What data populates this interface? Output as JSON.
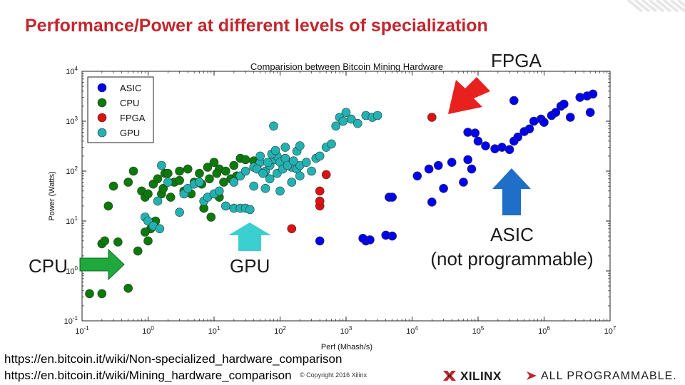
{
  "slide": {
    "title": "Performance/Power at different levels of specialization",
    "stripe_color": "#c0272d"
  },
  "annotations": {
    "fpga": "FPGA",
    "cpu": "CPU",
    "gpu": "GPU",
    "asic_line1": "ASIC",
    "asic_line2": "(not programmable)",
    "arrow_colors": {
      "fpga": "#e8201e",
      "cpu": "#1fa83b",
      "gpu": "#3ccfcf",
      "asic": "#1f6fc8"
    }
  },
  "footer": {
    "link1": "https://en.bitcoin.it/wiki/Non-specialized_hardware_comparison",
    "link2": "https://en.bitcoin.it/wiki/Mining_hardware_comparison",
    "copyright": "© Copyright 2016 Xilinx",
    "logo_brand": "XILINX",
    "logo_tagline": "ALL PROGRAMMABLE."
  },
  "chart_data": {
    "type": "scatter",
    "title": "Comparision between Bitcoin Mining Hardware",
    "xlabel": "Perf (Mhash/s)",
    "ylabel": "Power (Watts)",
    "xscale": "log",
    "yscale": "log",
    "xlim": [
      0.1,
      10000000
    ],
    "ylim": [
      0.1,
      10000
    ],
    "x_ticks": [
      "10^-1",
      "10^0",
      "10^1",
      "10^2",
      "10^3",
      "10^4",
      "10^5",
      "10^6",
      "10^7"
    ],
    "y_ticks": [
      "10^-1",
      "10^0",
      "10^1",
      "10^2",
      "10^3",
      "10^4"
    ],
    "grid": false,
    "legend_position": "top-left",
    "series": [
      {
        "name": "ASIC",
        "color": "#0000ee",
        "points": [
          [
            400,
            4
          ],
          [
            2000,
            4
          ],
          [
            2300,
            4.2
          ],
          [
            1800,
            4.5
          ],
          [
            5000,
            5
          ],
          [
            4000,
            5.2
          ],
          [
            4500,
            30
          ],
          [
            5000,
            30
          ],
          [
            20000,
            24
          ],
          [
            12000,
            80
          ],
          [
            18000,
            110
          ],
          [
            25000,
            130
          ],
          [
            40000,
            150
          ],
          [
            70000,
            170
          ],
          [
            30000,
            45
          ],
          [
            60000,
            60
          ],
          [
            80000,
            110
          ],
          [
            70000,
            600
          ],
          [
            90000,
            580
          ],
          [
            100000,
            400
          ],
          [
            130000,
            320
          ],
          [
            180000,
            280
          ],
          [
            230000,
            300
          ],
          [
            300000,
            270
          ],
          [
            350000,
            400
          ],
          [
            400000,
            480
          ],
          [
            500000,
            620
          ],
          [
            600000,
            700
          ],
          [
            700000,
            1000
          ],
          [
            900000,
            1100
          ],
          [
            1000000,
            950
          ],
          [
            1300000,
            1300
          ],
          [
            1500000,
            1500
          ],
          [
            1800000,
            2000
          ],
          [
            2000000,
            2200
          ],
          [
            350000,
            2600
          ],
          [
            2500000,
            1200
          ],
          [
            3500000,
            3000
          ],
          [
            4500000,
            3200
          ],
          [
            5500000,
            3500
          ],
          [
            5000000,
            1500
          ]
        ]
      },
      {
        "name": "CPU",
        "color": "#0a7a0a",
        "points": [
          [
            0.13,
            0.35
          ],
          [
            0.2,
            0.35
          ],
          [
            0.2,
            3.5
          ],
          [
            0.22,
            4
          ],
          [
            0.35,
            3.8
          ],
          [
            0.25,
            20
          ],
          [
            0.3,
            50
          ],
          [
            0.5,
            60
          ],
          [
            0.6,
            100
          ],
          [
            0.8,
            40
          ],
          [
            0.9,
            30
          ],
          [
            1.0,
            35
          ],
          [
            1.2,
            55
          ],
          [
            1.4,
            70
          ],
          [
            1.8,
            90
          ],
          [
            0.5,
            0.45
          ],
          [
            0.7,
            2.5
          ],
          [
            1.0,
            4
          ],
          [
            1.3,
            10
          ],
          [
            1.1,
            7
          ],
          [
            0.9,
            6
          ],
          [
            1.6,
            35
          ],
          [
            2.0,
            90
          ],
          [
            3.0,
            100
          ],
          [
            4.0,
            110
          ],
          [
            5.0,
            60
          ],
          [
            6.0,
            90
          ],
          [
            8.0,
            120
          ],
          [
            10.0,
            150
          ],
          [
            12.0,
            110
          ],
          [
            15.0,
            100
          ],
          [
            20.0,
            130
          ],
          [
            25.0,
            180
          ],
          [
            30.0,
            170
          ],
          [
            40.0,
            160
          ],
          [
            2.5,
            60
          ],
          [
            3.5,
            40
          ],
          [
            4.5,
            35
          ],
          [
            7.0,
            18
          ],
          [
            9.0,
            12
          ],
          [
            12.0,
            30
          ],
          [
            18.0,
            70
          ],
          [
            3.0,
            65
          ],
          [
            2.2,
            30
          ],
          [
            1.7,
            45
          ],
          [
            6.5,
            55
          ],
          [
            8.5,
            70
          ],
          [
            11.0,
            90
          ],
          [
            14.0,
            60
          ],
          [
            22.0,
            80
          ]
        ]
      },
      {
        "name": "FPGA",
        "color": "#dd1111",
        "points": [
          [
            20000,
            1200
          ],
          [
            150,
            7
          ],
          [
            400,
            20
          ],
          [
            400,
            25
          ],
          [
            500,
            85
          ],
          [
            400,
            40
          ]
        ]
      },
      {
        "name": "GPU",
        "color": "#22b2b2",
        "points": [
          [
            0.9,
            12
          ],
          [
            1.0,
            10
          ],
          [
            1.2,
            8
          ],
          [
            1.5,
            7
          ],
          [
            1.4,
            25
          ],
          [
            1.6,
            130
          ],
          [
            2.0,
            60
          ],
          [
            3.0,
            15
          ],
          [
            3.5,
            35
          ],
          [
            4.0,
            45
          ],
          [
            5.0,
            55
          ],
          [
            6.0,
            60
          ],
          [
            7.0,
            25
          ],
          [
            8.0,
            30
          ],
          [
            10.0,
            35
          ],
          [
            12.0,
            40
          ],
          [
            15.0,
            20
          ],
          [
            20.0,
            18
          ],
          [
            25.0,
            18
          ],
          [
            30.0,
            18
          ],
          [
            35.0,
            17
          ],
          [
            20.0,
            60
          ],
          [
            25.0,
            80
          ],
          [
            30.0,
            100
          ],
          [
            40.0,
            120
          ],
          [
            50.0,
            150
          ],
          [
            60.0,
            100
          ],
          [
            70.0,
            130
          ],
          [
            80.0,
            170
          ],
          [
            90.0,
            200
          ],
          [
            100.0,
            150
          ],
          [
            120.0,
            180
          ],
          [
            150.0,
            120
          ],
          [
            180.0,
            110
          ],
          [
            200.0,
            130
          ],
          [
            250.0,
            150
          ],
          [
            300.0,
            100
          ],
          [
            350.0,
            180
          ],
          [
            400.0,
            200
          ],
          [
            500.0,
            300
          ],
          [
            600.0,
            350
          ],
          [
            700.0,
            800
          ],
          [
            800.0,
            1200
          ],
          [
            900.0,
            1000
          ],
          [
            1000.0,
            1500
          ],
          [
            1200.0,
            1100
          ],
          [
            1500.0,
            900
          ],
          [
            2000.0,
            1300
          ],
          [
            2500.0,
            1200
          ],
          [
            3000.0,
            1300
          ],
          [
            80.0,
            800
          ],
          [
            40.0,
            50
          ],
          [
            60.0,
            45
          ],
          [
            100.0,
            40
          ],
          [
            150.0,
            60
          ],
          [
            200.0,
            80
          ],
          [
            120.0,
            300
          ],
          [
            180.0,
            250
          ],
          [
            200.0,
            320
          ],
          [
            70.0,
            70
          ],
          [
            90.0,
            90
          ],
          [
            110.0,
            110
          ],
          [
            130.0,
            130
          ],
          [
            160.0,
            160
          ],
          [
            50.0,
            200
          ],
          [
            45.0,
            110
          ],
          [
            55.0,
            90
          ],
          [
            65.0,
            150
          ],
          [
            75.0,
            220
          ],
          [
            85.0,
            260
          ]
        ]
      }
    ]
  }
}
